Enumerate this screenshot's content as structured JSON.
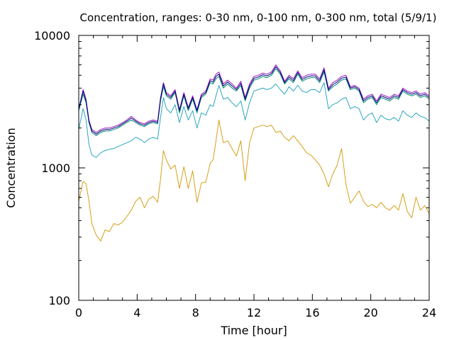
{
  "chart_data": {
    "type": "line",
    "title": "Concentration, ranges: 0-30 nm, 0-100 nm, 0-300 nm, total (5/9/1)",
    "xlabel": "Time [hour]",
    "ylabel": "Concentration",
    "xlim": [
      0,
      24
    ],
    "ylim": [
      100,
      10000
    ],
    "yscale": "log",
    "grid": false,
    "legend": "none",
    "x_ticks": [
      0,
      4,
      8,
      12,
      16,
      20,
      24
    ],
    "x_tick_labels": [
      "0",
      "4",
      "8",
      "12",
      "16",
      "20",
      "24"
    ],
    "y_ticks": [
      100,
      1000,
      10000
    ],
    "y_tick_labels": [
      "100",
      "1000",
      "10000"
    ],
    "series": [
      {
        "color": "#d4a017",
        "x": [
          0,
          0.3,
          0.5,
          0.7,
          0.9,
          1.2,
          1.5,
          1.8,
          2.1,
          2.4,
          2.7,
          3.0,
          3.3,
          3.6,
          3.9,
          4.2,
          4.5,
          4.8,
          5.1,
          5.4,
          5.6,
          5.8,
          6.0,
          6.3,
          6.6,
          6.9,
          7.2,
          7.5,
          7.8,
          8.1,
          8.4,
          8.7,
          9.0,
          9.2,
          9.4,
          9.6,
          9.9,
          10.2,
          10.5,
          10.8,
          11.1,
          11.4,
          11.7,
          12.0,
          12.3,
          12.6,
          12.9,
          13.2,
          13.5,
          13.8,
          14.1,
          14.4,
          14.7,
          15.0,
          15.3,
          15.6,
          15.9,
          16.2,
          16.5,
          16.8,
          17.1,
          17.4,
          17.7,
          18.0,
          18.3,
          18.6,
          18.9,
          19.2,
          19.5,
          19.8,
          20.1,
          20.4,
          20.7,
          21.0,
          21.3,
          21.6,
          21.9,
          22.2,
          22.5,
          22.8,
          23.1,
          23.4,
          23.7,
          24.0
        ],
        "values": [
          560,
          790,
          760,
          560,
          380,
          310,
          280,
          340,
          330,
          380,
          370,
          390,
          430,
          480,
          560,
          600,
          500,
          580,
          610,
          550,
          820,
          1350,
          1150,
          980,
          1050,
          700,
          1020,
          700,
          950,
          550,
          770,
          780,
          1080,
          1150,
          1600,
          2300,
          1550,
          1600,
          1400,
          1230,
          1600,
          800,
          1550,
          2000,
          2050,
          2100,
          2050,
          2100,
          1850,
          1900,
          1700,
          1600,
          1750,
          1600,
          1450,
          1300,
          1250,
          1150,
          1050,
          900,
          720,
          900,
          1050,
          1400,
          750,
          540,
          600,
          670,
          560,
          510,
          530,
          500,
          550,
          500,
          480,
          520,
          480,
          640,
          470,
          420,
          600,
          480,
          520,
          450
        ]
      },
      {
        "color": "#2aa6c0",
        "x": [
          0,
          0.3,
          0.5,
          0.7,
          0.9,
          1.2,
          1.5,
          1.8,
          2.1,
          2.4,
          2.7,
          3.0,
          3.3,
          3.6,
          3.9,
          4.2,
          4.5,
          4.8,
          5.1,
          5.4,
          5.6,
          5.8,
          6.0,
          6.3,
          6.6,
          6.9,
          7.2,
          7.5,
          7.8,
          8.1,
          8.4,
          8.7,
          9.0,
          9.2,
          9.4,
          9.6,
          9.9,
          10.2,
          10.5,
          10.8,
          11.1,
          11.4,
          11.7,
          12.0,
          12.3,
          12.6,
          12.9,
          13.2,
          13.5,
          13.8,
          14.1,
          14.4,
          14.7,
          15.0,
          15.3,
          15.6,
          15.9,
          16.2,
          16.5,
          16.8,
          17.1,
          17.4,
          17.7,
          18.0,
          18.3,
          18.6,
          18.9,
          19.2,
          19.5,
          19.8,
          20.1,
          20.4,
          20.7,
          21.0,
          21.3,
          21.6,
          21.9,
          22.2,
          22.5,
          22.8,
          23.1,
          23.4,
          23.7,
          24.0
        ],
        "values": [
          1950,
          2800,
          2300,
          1500,
          1250,
          1200,
          1300,
          1350,
          1380,
          1400,
          1450,
          1500,
          1550,
          1600,
          1700,
          1650,
          1550,
          1650,
          1700,
          1650,
          2400,
          3400,
          2800,
          2600,
          3000,
          2200,
          2900,
          2300,
          2700,
          2000,
          2600,
          2500,
          3000,
          2900,
          3500,
          4200,
          3300,
          3400,
          3100,
          2900,
          3200,
          2300,
          3100,
          3800,
          3900,
          4000,
          3900,
          4000,
          4300,
          3900,
          3600,
          4100,
          3800,
          4200,
          3800,
          3700,
          3900,
          3900,
          3700,
          4400,
          2800,
          3000,
          3100,
          3300,
          3400,
          2800,
          2900,
          2800,
          2300,
          2500,
          2600,
          2200,
          2500,
          2350,
          2300,
          2400,
          2250,
          2700,
          2500,
          2400,
          2600,
          2450,
          2400,
          2250
        ]
      },
      {
        "color": "#008b6e",
        "x": [
          0,
          0.3,
          0.5,
          0.7,
          0.9,
          1.2,
          1.5,
          1.8,
          2.1,
          2.4,
          2.7,
          3.0,
          3.3,
          3.6,
          3.9,
          4.2,
          4.5,
          4.8,
          5.1,
          5.4,
          5.6,
          5.8,
          6.0,
          6.3,
          6.6,
          6.9,
          7.2,
          7.5,
          7.8,
          8.1,
          8.4,
          8.7,
          9.0,
          9.2,
          9.4,
          9.6,
          9.9,
          10.2,
          10.5,
          10.8,
          11.1,
          11.4,
          11.7,
          12.0,
          12.3,
          12.6,
          12.9,
          13.2,
          13.5,
          13.8,
          14.1,
          14.4,
          14.7,
          15.0,
          15.3,
          15.6,
          15.9,
          16.2,
          16.5,
          16.8,
          17.1,
          17.4,
          17.7,
          18.0,
          18.3,
          18.6,
          18.9,
          19.2,
          19.5,
          19.8,
          20.1,
          20.4,
          20.7,
          21.0,
          21.3,
          21.6,
          21.9,
          22.2,
          22.5,
          22.8,
          23.1,
          23.4,
          23.7,
          24.0
        ],
        "values": [
          2700,
          3600,
          3100,
          2200,
          1850,
          1750,
          1850,
          1900,
          1900,
          1950,
          2000,
          2100,
          2200,
          2300,
          2200,
          2100,
          2050,
          2150,
          2200,
          2150,
          3200,
          4100,
          3500,
          3300,
          3700,
          2600,
          3500,
          2700,
          3300,
          2600,
          3400,
          3600,
          4400,
          4300,
          4700,
          4900,
          4000,
          4300,
          4000,
          3800,
          4200,
          3200,
          4000,
          4600,
          4700,
          4900,
          4800,
          5000,
          5600,
          5100,
          4300,
          4700,
          4400,
          5100,
          4500,
          4700,
          4800,
          4800,
          4400,
          5300,
          3800,
          4100,
          4300,
          4600,
          4700,
          3900,
          4000,
          3800,
          3100,
          3300,
          3400,
          3000,
          3400,
          3300,
          3200,
          3400,
          3300,
          3800,
          3600,
          3500,
          3600,
          3400,
          3500,
          3300
        ]
      },
      {
        "color": "#9a1ab8",
        "x": [
          0,
          0.3,
          0.5,
          0.7,
          0.9,
          1.2,
          1.5,
          1.8,
          2.1,
          2.4,
          2.7,
          3.0,
          3.3,
          3.6,
          3.9,
          4.2,
          4.5,
          4.8,
          5.1,
          5.4,
          5.6,
          5.8,
          6.0,
          6.3,
          6.6,
          6.9,
          7.2,
          7.5,
          7.8,
          8.1,
          8.4,
          8.7,
          9.0,
          9.2,
          9.4,
          9.6,
          9.9,
          10.2,
          10.5,
          10.8,
          11.1,
          11.4,
          11.7,
          12.0,
          12.3,
          12.6,
          12.9,
          13.2,
          13.5,
          13.8,
          14.1,
          14.4,
          14.7,
          15.0,
          15.3,
          15.6,
          15.9,
          16.2,
          16.5,
          16.8,
          17.1,
          17.4,
          17.7,
          18.0,
          18.3,
          18.6,
          18.9,
          19.2,
          19.5,
          19.8,
          20.1,
          20.4,
          20.7,
          21.0,
          21.3,
          21.6,
          21.9,
          22.2,
          22.5,
          22.8,
          23.1,
          23.4,
          23.7,
          24.0
        ],
        "values": [
          2800,
          3900,
          3300,
          2300,
          1950,
          1850,
          1950,
          2000,
          2000,
          2050,
          2100,
          2200,
          2300,
          2450,
          2300,
          2200,
          2150,
          2250,
          2300,
          2250,
          3400,
          4400,
          3700,
          3500,
          3900,
          2750,
          3700,
          2850,
          3500,
          2750,
          3600,
          3800,
          4700,
          4600,
          5100,
          5300,
          4300,
          4600,
          4300,
          4000,
          4500,
          3400,
          4300,
          4900,
          5000,
          5200,
          5100,
          5300,
          6000,
          5400,
          4500,
          5000,
          4700,
          5400,
          4800,
          5000,
          5100,
          5100,
          4700,
          5700,
          4000,
          4400,
          4600,
          4900,
          5000,
          4100,
          4200,
          4000,
          3300,
          3500,
          3600,
          3200,
          3600,
          3500,
          3400,
          3600,
          3500,
          4000,
          3800,
          3700,
          3800,
          3600,
          3700,
          3500
        ]
      },
      {
        "color": "#000080",
        "x": [
          0,
          0.3,
          0.5,
          0.7,
          0.9,
          1.2,
          1.5,
          1.8,
          2.1,
          2.4,
          2.7,
          3.0,
          3.3,
          3.6,
          3.9,
          4.2,
          4.5,
          4.8,
          5.1,
          5.4,
          5.6,
          5.8,
          6.0,
          6.3,
          6.6,
          6.9,
          7.2,
          7.5,
          7.8,
          8.1,
          8.4,
          8.7,
          9.0,
          9.2,
          9.4,
          9.6,
          9.9,
          10.2,
          10.5,
          10.8,
          11.1,
          11.4,
          11.7,
          12.0,
          12.3,
          12.6,
          12.9,
          13.2,
          13.5,
          13.8,
          14.1,
          14.4,
          14.7,
          15.0,
          15.3,
          15.6,
          15.9,
          16.2,
          16.5,
          16.8,
          17.1,
          17.4,
          17.7,
          18.0,
          18.3,
          18.6,
          18.9,
          19.2,
          19.5,
          19.8,
          20.1,
          20.4,
          20.7,
          21.0,
          21.3,
          21.6,
          21.9,
          22.2,
          22.5,
          22.8,
          23.1,
          23.4,
          23.7,
          24.0
        ],
        "values": [
          2750,
          3800,
          3200,
          2250,
          1900,
          1800,
          1900,
          1950,
          1950,
          2000,
          2050,
          2150,
          2250,
          2380,
          2250,
          2150,
          2100,
          2200,
          2250,
          2200,
          3300,
          4300,
          3600,
          3400,
          3800,
          2700,
          3600,
          2800,
          3400,
          2700,
          3500,
          3700,
          4550,
          4450,
          4900,
          5100,
          4150,
          4450,
          4150,
          3900,
          4350,
          3300,
          4150,
          4750,
          4850,
          5050,
          4950,
          5150,
          5800,
          5250,
          4400,
          4850,
          4550,
          5250,
          4650,
          4850,
          4950,
          4950,
          4550,
          5500,
          3900,
          4250,
          4450,
          4750,
          4850,
          4000,
          4100,
          3900,
          3200,
          3400,
          3500,
          3100,
          3500,
          3400,
          3300,
          3500,
          3400,
          3900,
          3700,
          3600,
          3700,
          3500,
          3600,
          3400
        ]
      }
    ]
  }
}
